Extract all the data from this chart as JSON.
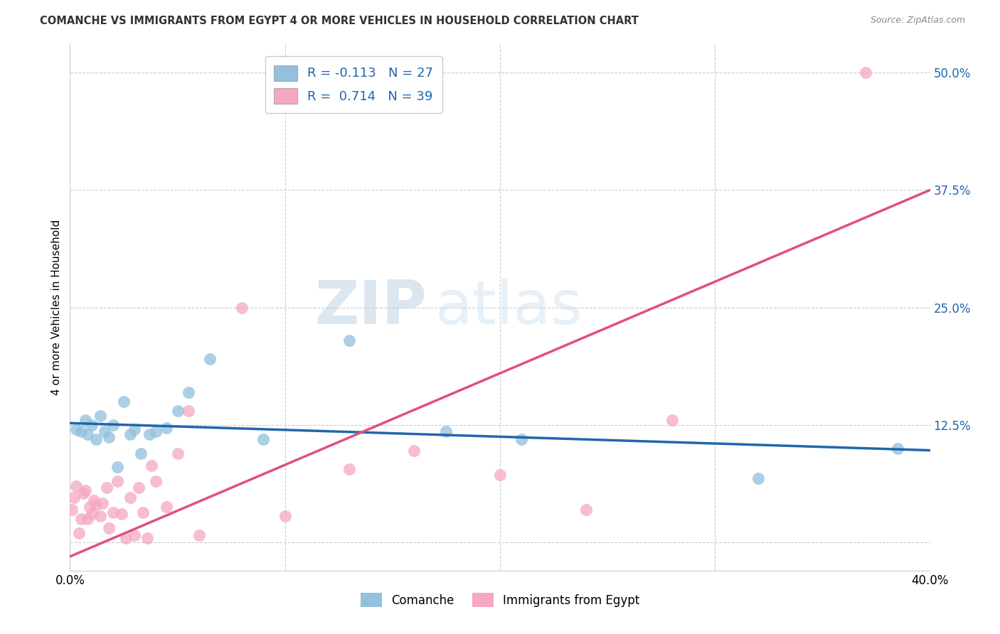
{
  "title": "COMANCHE VS IMMIGRANTS FROM EGYPT 4 OR MORE VEHICLES IN HOUSEHOLD CORRELATION CHART",
  "source": "Source: ZipAtlas.com",
  "ylabel": "4 or more Vehicles in Household",
  "xlim": [
    0.0,
    0.4
  ],
  "ylim": [
    -0.03,
    0.53
  ],
  "yticks": [
    0.0,
    0.125,
    0.25,
    0.375,
    0.5
  ],
  "ytick_labels": [
    "",
    "12.5%",
    "25.0%",
    "37.5%",
    "50.0%"
  ],
  "blue_color": "#92c0dd",
  "pink_color": "#f5a8bf",
  "blue_line_color": "#2166ac",
  "pink_line_color": "#e05080",
  "blue_x": [
    0.003,
    0.005,
    0.007,
    0.008,
    0.01,
    0.012,
    0.014,
    0.016,
    0.018,
    0.02,
    0.022,
    0.025,
    0.028,
    0.03,
    0.033,
    0.037,
    0.04,
    0.045,
    0.05,
    0.055,
    0.065,
    0.09,
    0.13,
    0.175,
    0.21,
    0.32,
    0.385
  ],
  "blue_y": [
    0.12,
    0.118,
    0.13,
    0.115,
    0.125,
    0.11,
    0.135,
    0.118,
    0.112,
    0.125,
    0.08,
    0.15,
    0.115,
    0.12,
    0.095,
    0.115,
    0.118,
    0.122,
    0.14,
    0.16,
    0.195,
    0.11,
    0.215,
    0.118,
    0.11,
    0.068,
    0.1
  ],
  "pink_x": [
    0.001,
    0.002,
    0.003,
    0.004,
    0.005,
    0.006,
    0.007,
    0.008,
    0.009,
    0.01,
    0.011,
    0.012,
    0.014,
    0.015,
    0.017,
    0.018,
    0.02,
    0.022,
    0.024,
    0.026,
    0.028,
    0.03,
    0.032,
    0.034,
    0.036,
    0.038,
    0.04,
    0.045,
    0.05,
    0.055,
    0.06,
    0.08,
    0.1,
    0.13,
    0.16,
    0.2,
    0.24,
    0.28,
    0.37
  ],
  "pink_y": [
    0.035,
    0.048,
    0.06,
    0.01,
    0.025,
    0.052,
    0.055,
    0.025,
    0.038,
    0.03,
    0.045,
    0.04,
    0.028,
    0.042,
    0.058,
    0.015,
    0.032,
    0.065,
    0.03,
    0.005,
    0.048,
    0.008,
    0.058,
    0.032,
    0.005,
    0.082,
    0.065,
    0.038,
    0.095,
    0.14,
    0.008,
    0.25,
    0.028,
    0.078,
    0.098,
    0.072,
    0.035,
    0.13,
    0.5
  ],
  "blue_line_x0": 0.0,
  "blue_line_y0": 0.127,
  "blue_line_x1": 0.4,
  "blue_line_y1": 0.098,
  "pink_line_x0": 0.0,
  "pink_line_y0": -0.015,
  "pink_line_x1": 0.4,
  "pink_line_y1": 0.375
}
